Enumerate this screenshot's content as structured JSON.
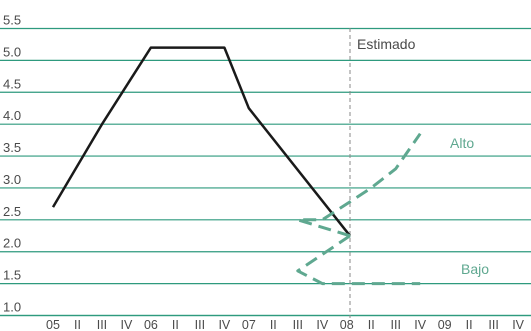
{
  "chart_data": {
    "type": "line",
    "title": "",
    "xlabel": "",
    "ylabel": "",
    "ylim": [
      1.0,
      5.5
    ],
    "yticks": [
      1.0,
      1.5,
      2.0,
      2.5,
      3.0,
      3.5,
      4.0,
      4.5,
      5.0,
      5.5
    ],
    "ytick_labels": [
      "1.0",
      "1.5",
      "2.0",
      "2.5",
      "3.0",
      "3.5",
      "4.0",
      "4.5",
      "5.0",
      "5.5"
    ],
    "grid": "horizontal",
    "categories": [
      "05",
      "II",
      "III",
      "IV",
      "06",
      "II",
      "III",
      "IV",
      "07",
      "II",
      "III",
      "IV",
      "08",
      "II",
      "III",
      "IV",
      "09",
      "II",
      "III",
      "IV"
    ],
    "estimate_start_category": "08",
    "annotations": [
      {
        "text": "Estimado"
      },
      {
        "text": "Alto"
      },
      {
        "text": "Bajo"
      }
    ],
    "series": [
      {
        "values": [
          2.7,
          3.35,
          4.0,
          4.6,
          5.2,
          5.2,
          5.2,
          5.2,
          4.25,
          2.25,
          null,
          null,
          null,
          null,
          null,
          null,
          null,
          null,
          null,
          null
        ],
        "color": "#1a1a1a",
        "style": "solid"
      },
      {
        "name": "Alto",
        "values": [
          null,
          null,
          null,
          null,
          null,
          null,
          null,
          null,
          null,
          2.25,
          2.5,
          2.5,
          2.75,
          3.0,
          3.3,
          3.85,
          null,
          null,
          null,
          null
        ],
        "color": "#5fa890",
        "style": "dashed"
      },
      {
        "name": "Bajo",
        "values": [
          null,
          null,
          null,
          null,
          null,
          null,
          null,
          null,
          null,
          2.25,
          1.7,
          1.5,
          1.5,
          1.5,
          1.5,
          1.5,
          null,
          null,
          null,
          null
        ],
        "color": "#5fa890",
        "style": "dashed"
      }
    ],
    "colors": {
      "grid": "#2e9a7e",
      "estimate_line": "#888888",
      "text": "#4a4a4a"
    }
  }
}
